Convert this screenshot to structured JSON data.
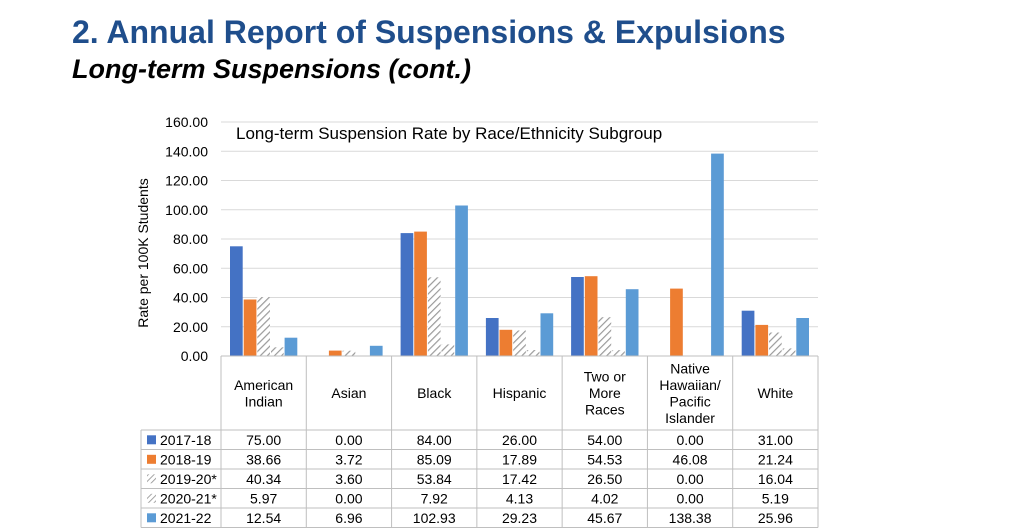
{
  "slide": {
    "title": "2. Annual Report of Suspensions & Expulsions",
    "subtitle": "Long-term Suspensions (cont.)"
  },
  "chart_data": {
    "type": "bar",
    "title": "Long-term Suspension Rate by Race/Ethnicity Subgroup",
    "xlabel": "",
    "ylabel": "Rate per 100K Students",
    "ylim": [
      0,
      160
    ],
    "yticks": [
      "0.00",
      "20.00",
      "40.00",
      "60.00",
      "80.00",
      "100.00",
      "120.00",
      "140.00",
      "160.00"
    ],
    "grid": true,
    "legend": "data table",
    "categories": [
      [
        "American",
        "Indian"
      ],
      [
        "Asian"
      ],
      [
        "Black"
      ],
      [
        "Hispanic"
      ],
      [
        "Two or",
        "More",
        "Races"
      ],
      [
        "Native",
        "Hawaiian/",
        "Pacific",
        "Islander"
      ],
      [
        "White"
      ]
    ],
    "series": [
      {
        "name": "2017-18",
        "color": "#4472c4",
        "pattern": false,
        "values": [
          75.0,
          0.0,
          84.0,
          26.0,
          54.0,
          0.0,
          31.0
        ],
        "labels": [
          "75.00",
          "0.00",
          "84.00",
          "26.00",
          "54.00",
          "0.00",
          "31.00"
        ]
      },
      {
        "name": "2018-19",
        "color": "#ed7d31",
        "pattern": false,
        "values": [
          38.66,
          3.72,
          85.09,
          17.89,
          54.53,
          46.08,
          21.24
        ],
        "labels": [
          "38.66",
          "3.72",
          "85.09",
          "17.89",
          "54.53",
          "46.08",
          "21.24"
        ]
      },
      {
        "name": "2019-20*",
        "color": "#a5a5a5",
        "pattern": true,
        "values": [
          40.34,
          3.6,
          53.84,
          17.42,
          26.5,
          0.0,
          16.04
        ],
        "labels": [
          "40.34",
          "3.60",
          "53.84",
          "17.42",
          "26.50",
          "0.00",
          "16.04"
        ]
      },
      {
        "name": "2020-21*",
        "color": "#a5a5a5",
        "pattern": true,
        "values": [
          5.97,
          0.0,
          7.92,
          4.13,
          4.02,
          0.0,
          5.19
        ],
        "labels": [
          "5.97",
          "0.00",
          "7.92",
          "4.13",
          "4.02",
          "0.00",
          "5.19"
        ]
      },
      {
        "name": "2021-22",
        "color": "#5b9bd5",
        "pattern": false,
        "values": [
          12.54,
          6.96,
          102.93,
          29.23,
          45.67,
          138.38,
          25.96
        ],
        "labels": [
          "12.54",
          "6.96",
          "102.93",
          "29.23",
          "45.67",
          "138.38",
          "25.96"
        ]
      }
    ]
  }
}
